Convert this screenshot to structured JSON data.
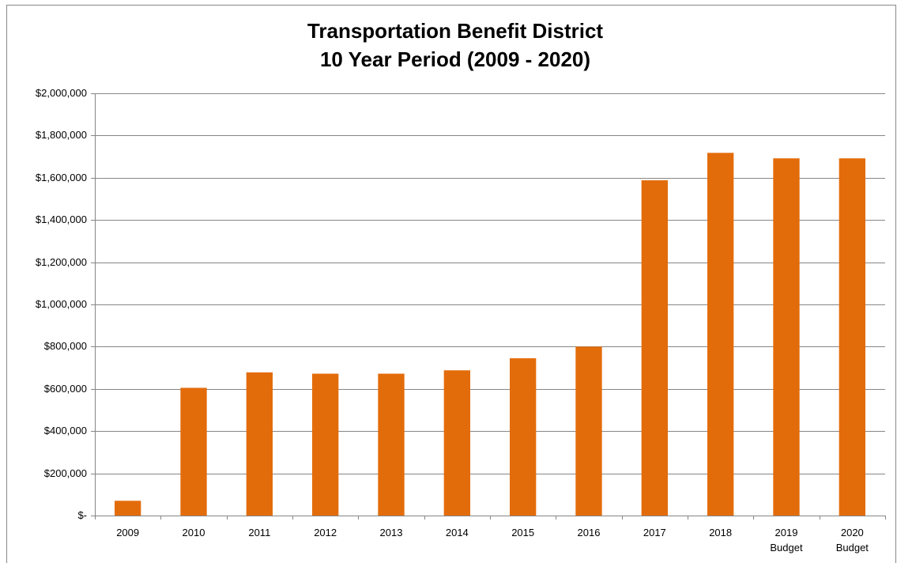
{
  "chart_data": {
    "type": "bar",
    "title": "Transportation Benefit District",
    "subtitle": "10 Year Period (2009 - 2020)",
    "categories": [
      "2009",
      "2010",
      "2011",
      "2012",
      "2013",
      "2014",
      "2015",
      "2016",
      "2017",
      "2018",
      "2019 Budget",
      "2020 Budget"
    ],
    "values": [
      70000,
      605000,
      678000,
      672000,
      672000,
      688000,
      745000,
      800000,
      1588000,
      1718000,
      1692000,
      1692000
    ],
    "color": "#e36c0a",
    "ylim": [
      0,
      2000000
    ],
    "yticks": [
      {
        "value": 0,
        "label": "$-"
      },
      {
        "value": 200000,
        "label": "$200,000"
      },
      {
        "value": 400000,
        "label": "$400,000"
      },
      {
        "value": 600000,
        "label": "$600,000"
      },
      {
        "value": 800000,
        "label": "$800,000"
      },
      {
        "value": 1000000,
        "label": "$1,000,000"
      },
      {
        "value": 1200000,
        "label": "$1,200,000"
      },
      {
        "value": 1400000,
        "label": "$1,400,000"
      },
      {
        "value": 1600000,
        "label": "$1,600,000"
      },
      {
        "value": 1800000,
        "label": "$1,800,000"
      },
      {
        "value": 2000000,
        "label": "$2,000,000"
      }
    ],
    "grid": true
  }
}
